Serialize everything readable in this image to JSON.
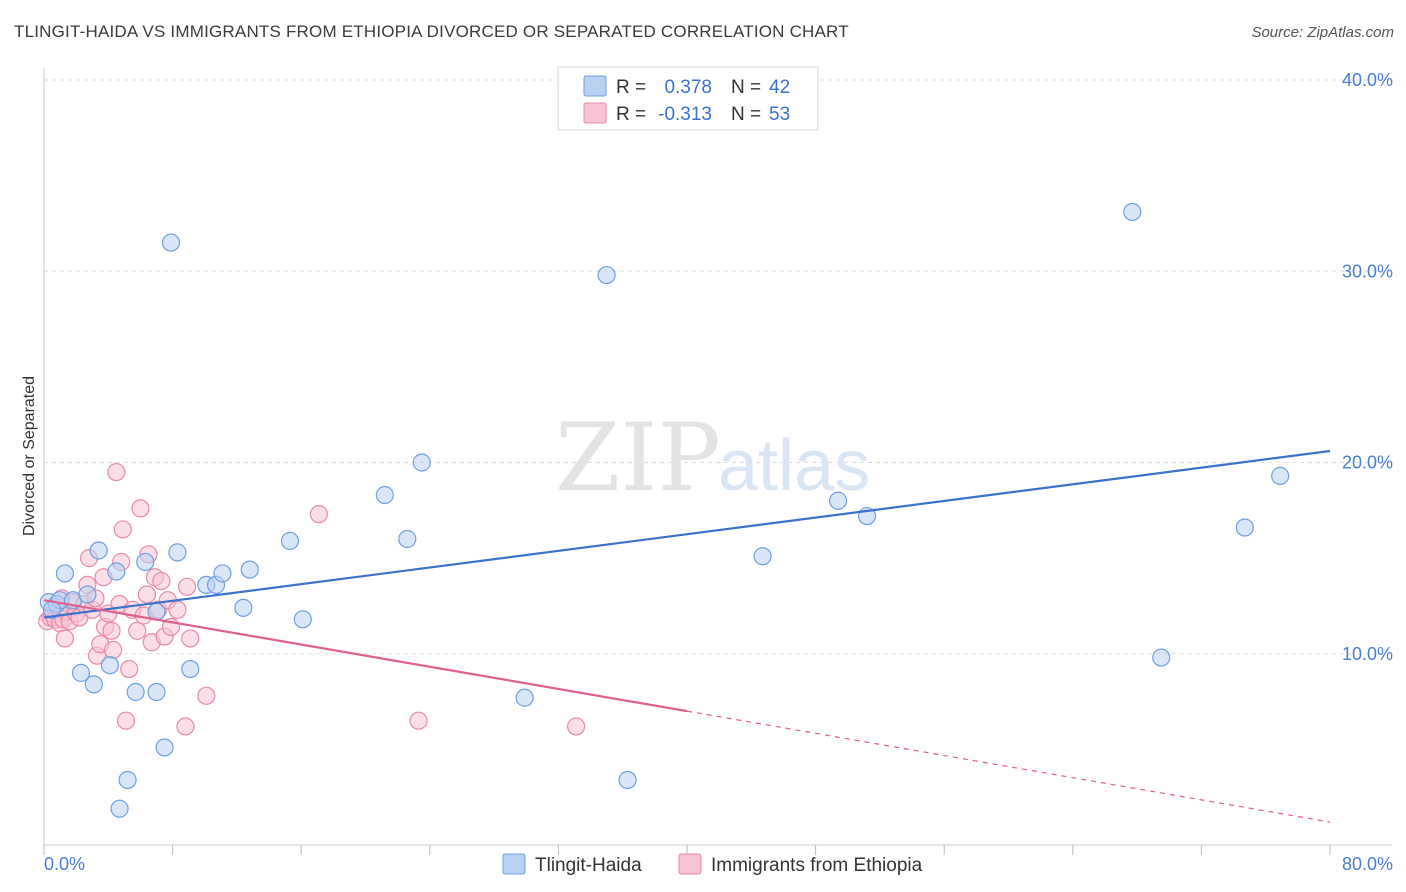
{
  "title": "TLINGIT-HAIDA VS IMMIGRANTS FROM ETHIOPIA DIVORCED OR SEPARATED CORRELATION CHART",
  "source": "Source: ZipAtlas.com",
  "watermark": {
    "zip": "ZIP",
    "atlas": "atlas"
  },
  "legend": {
    "rows": [
      {
        "r_label": "R =",
        "r_value": "0.378",
        "n_label": "N =",
        "n_value": "42"
      },
      {
        "r_label": "R =",
        "r_value": "-0.313",
        "n_label": "N =",
        "n_value": "53"
      }
    ]
  },
  "bottom_legend": [
    "Tlingit-Haida",
    "Immigrants from Ethiopia"
  ],
  "colors": {
    "blue_fill": "#b8d2f2",
    "blue_stroke": "#6f9fe0",
    "blue_line": "#3a72cc",
    "pink_fill": "#f8c3d3",
    "pink_stroke": "#e88aa8",
    "pink_line": "#e0608c",
    "tick_text": "#4a7fd0",
    "grid": "#dddddd"
  },
  "chart_data": {
    "type": "scatter",
    "title": "TLINGIT-HAIDA VS IMMIGRANTS FROM ETHIOPIA DIVORCED OR SEPARATED CORRELATION CHART",
    "xlabel": "",
    "ylabel": "Divorced or Separated",
    "xlim": [
      0,
      80
    ],
    "ylim": [
      0,
      40
    ],
    "x_tick_labels": [
      "0.0%",
      "80.0%"
    ],
    "y_ticks": [
      10,
      20,
      30,
      40
    ],
    "y_tick_labels": [
      "10.0%",
      "20.0%",
      "30.0%",
      "40.0%"
    ],
    "grid": true,
    "legend_position": "top-center",
    "series": [
      {
        "name": "Tlingit-Haida",
        "r": 0.378,
        "n": 42,
        "trend": {
          "x0": 0,
          "y0": 11.9,
          "x1": 80,
          "y1": 20.6,
          "dashed_from": null
        },
        "points": [
          [
            0.3,
            12.7
          ],
          [
            0.8,
            12.6
          ],
          [
            1.0,
            12.8
          ],
          [
            1.3,
            14.2
          ],
          [
            1.8,
            12.8
          ],
          [
            2.3,
            9.0
          ],
          [
            2.7,
            13.1
          ],
          [
            3.1,
            8.4
          ],
          [
            3.4,
            15.4
          ],
          [
            4.1,
            9.4
          ],
          [
            4.5,
            14.3
          ],
          [
            4.7,
            1.9
          ],
          [
            5.2,
            3.4
          ],
          [
            5.7,
            8.0
          ],
          [
            6.3,
            14.8
          ],
          [
            7.0,
            8.0
          ],
          [
            7.0,
            12.2
          ],
          [
            7.5,
            5.1
          ],
          [
            7.9,
            31.5
          ],
          [
            8.3,
            15.3
          ],
          [
            9.1,
            9.2
          ],
          [
            10.1,
            13.6
          ],
          [
            10.7,
            13.6
          ],
          [
            11.1,
            14.2
          ],
          [
            12.4,
            12.4
          ],
          [
            12.8,
            14.4
          ],
          [
            15.3,
            15.9
          ],
          [
            16.1,
            11.8
          ],
          [
            21.2,
            18.3
          ],
          [
            22.6,
            16.0
          ],
          [
            23.5,
            20.0
          ],
          [
            29.9,
            7.7
          ],
          [
            35.0,
            29.8
          ],
          [
            36.3,
            3.4
          ],
          [
            44.7,
            15.1
          ],
          [
            49.4,
            18.0
          ],
          [
            51.2,
            17.2
          ],
          [
            67.7,
            33.1
          ],
          [
            69.5,
            9.8
          ],
          [
            74.7,
            16.6
          ],
          [
            76.9,
            19.3
          ],
          [
            0.5,
            12.3
          ]
        ]
      },
      {
        "name": "Immigrants from Ethiopia",
        "r": -0.313,
        "n": 53,
        "trend": {
          "x0": 0,
          "y0": 12.8,
          "x1": 80,
          "y1": 1.2,
          "dashed_from": 40
        },
        "points": [
          [
            0.2,
            11.7
          ],
          [
            0.4,
            11.9
          ],
          [
            0.5,
            12.1
          ],
          [
            0.7,
            11.8
          ],
          [
            0.9,
            12.4
          ],
          [
            1.0,
            11.6
          ],
          [
            1.1,
            12.9
          ],
          [
            1.2,
            11.8
          ],
          [
            1.3,
            10.8
          ],
          [
            1.4,
            12.2
          ],
          [
            1.6,
            11.7
          ],
          [
            1.8,
            12.7
          ],
          [
            2.0,
            12.1
          ],
          [
            2.2,
            11.9
          ],
          [
            2.5,
            12.6
          ],
          [
            2.7,
            13.6
          ],
          [
            2.8,
            15.0
          ],
          [
            3.0,
            12.3
          ],
          [
            3.2,
            12.9
          ],
          [
            3.3,
            9.9
          ],
          [
            3.5,
            10.5
          ],
          [
            3.7,
            14.0
          ],
          [
            3.8,
            11.4
          ],
          [
            4.0,
            12.1
          ],
          [
            4.2,
            11.2
          ],
          [
            4.3,
            10.2
          ],
          [
            4.5,
            19.5
          ],
          [
            4.7,
            12.6
          ],
          [
            4.8,
            14.8
          ],
          [
            4.9,
            16.5
          ],
          [
            5.1,
            6.5
          ],
          [
            5.3,
            9.2
          ],
          [
            5.5,
            12.3
          ],
          [
            5.8,
            11.2
          ],
          [
            6.0,
            17.6
          ],
          [
            6.2,
            12.0
          ],
          [
            6.4,
            13.1
          ],
          [
            6.5,
            15.2
          ],
          [
            6.7,
            10.6
          ],
          [
            6.9,
            14.0
          ],
          [
            7.1,
            12.3
          ],
          [
            7.3,
            13.8
          ],
          [
            7.5,
            10.9
          ],
          [
            7.7,
            12.8
          ],
          [
            7.9,
            11.4
          ],
          [
            8.3,
            12.3
          ],
          [
            8.8,
            6.2
          ],
          [
            8.9,
            13.5
          ],
          [
            9.1,
            10.8
          ],
          [
            10.1,
            7.8
          ],
          [
            17.1,
            17.3
          ],
          [
            23.3,
            6.5
          ],
          [
            33.1,
            6.2
          ]
        ]
      }
    ]
  }
}
